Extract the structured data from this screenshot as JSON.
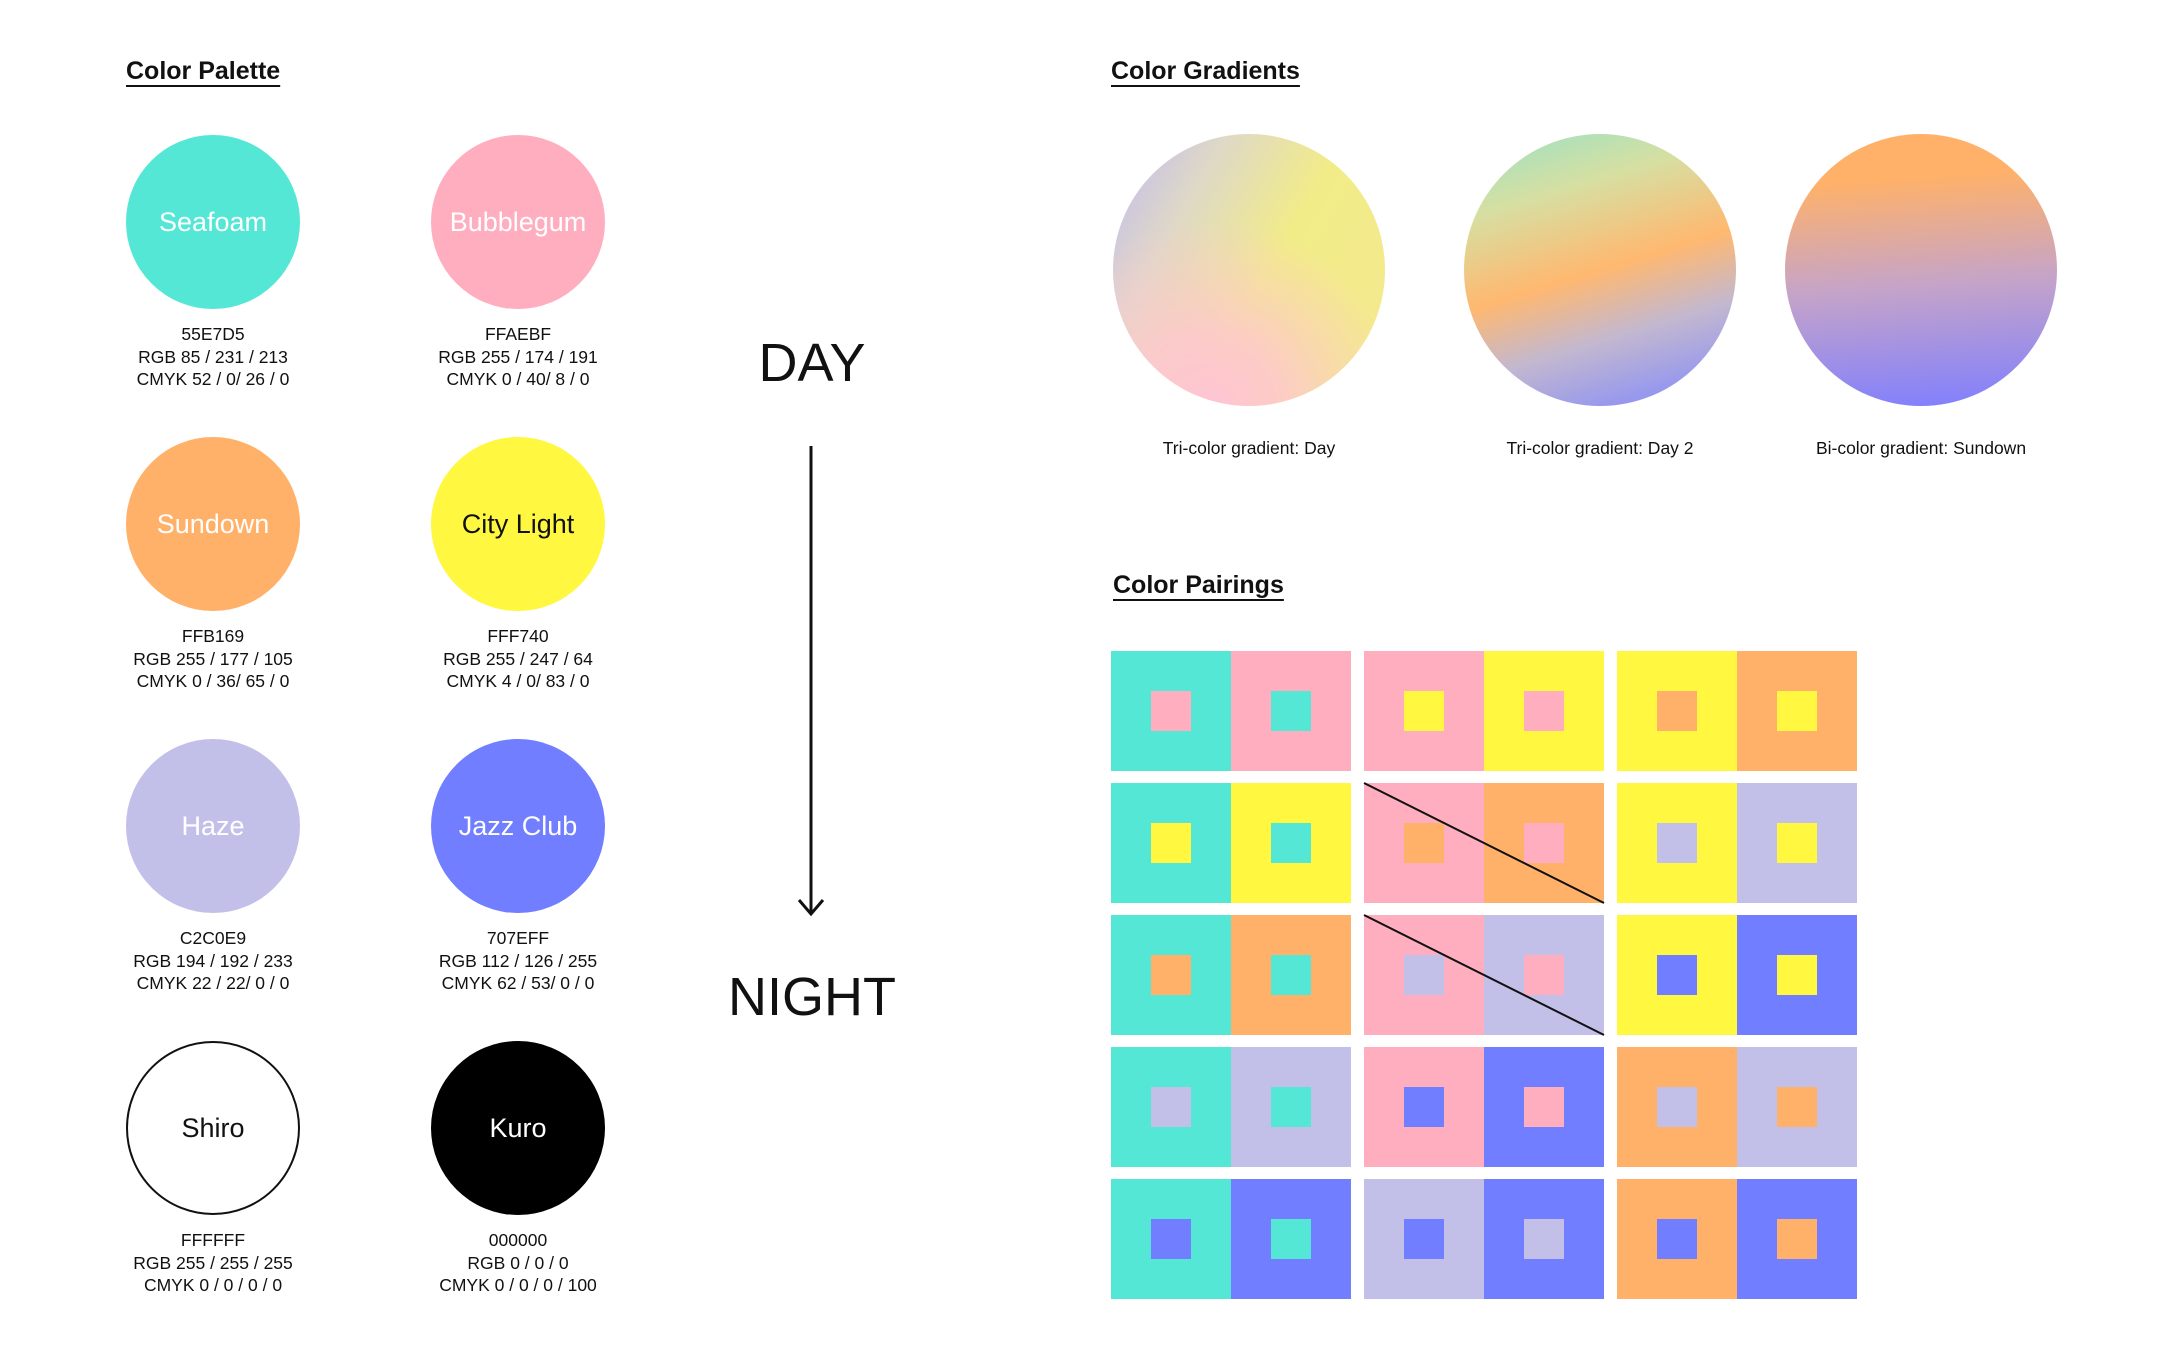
{
  "palette": {
    "title": "Color Palette",
    "swatches": [
      {
        "name": "Seafoam",
        "hex": "55E7D5",
        "rgb": "RGB 85 / 231 / 213",
        "cmyk": "CMYK 52 / 0/ 26 / 0",
        "color": "#55E7D5",
        "text_color": "#ffffff"
      },
      {
        "name": "Bubblegum",
        "hex": "FFAEBF",
        "rgb": "RGB 255 / 174 / 191",
        "cmyk": "CMYK 0 / 40/ 8 / 0",
        "color": "#FFAEBF",
        "text_color": "#ffffff"
      },
      {
        "name": "Sundown",
        "hex": "FFB169",
        "rgb": "RGB 255 / 177 / 105",
        "cmyk": "CMYK 0 / 36/ 65 / 0",
        "color": "#FFB169",
        "text_color": "#ffffff"
      },
      {
        "name": "City Light",
        "hex": "FFF740",
        "rgb": "RGB 255 / 247 / 64",
        "cmyk": "CMYK 4 / 0/ 83 / 0",
        "color": "#FFF740",
        "text_color": "#111111"
      },
      {
        "name": "Haze",
        "hex": "C2C0E9",
        "rgb": "RGB 194 / 192 / 233",
        "cmyk": "CMYK 22 / 22/ 0 / 0",
        "color": "#C2C0E9",
        "text_color": "#ffffff"
      },
      {
        "name": "Jazz Club",
        "hex": "707EFF",
        "rgb": "RGB 112 / 126 / 255",
        "cmyk": "CMYK 62 / 53/ 0 / 0",
        "color": "#707EFF",
        "text_color": "#ffffff"
      },
      {
        "name": "Shiro",
        "hex": "FFFFFF",
        "rgb": "RGB 255 / 255 / 255",
        "cmyk": "CMYK 0 / 0 / 0 / 0",
        "color": "#FFFFFF",
        "text_color": "#111111"
      },
      {
        "name": "Kuro",
        "hex": "000000",
        "rgb": "RGB 0 / 0 / 0",
        "cmyk": "CMYK 0 / 0 / 0 / 100",
        "color": "#000000",
        "text_color": "#ffffff"
      }
    ]
  },
  "scale": {
    "day_label": "DAY",
    "night_label": "NIGHT"
  },
  "gradients": {
    "title": "Color Gradients",
    "items": [
      {
        "label": "Tri-color gradient: Day"
      },
      {
        "label": "Tri-color gradient: Day 2"
      },
      {
        "label": "Bi-color gradient: Sundown"
      }
    ]
  },
  "pairings": {
    "title": "Color Pairings",
    "rows": [
      [
        [
          "#55E7D5",
          "#FFAEBF"
        ],
        [
          "#FFAEBF",
          "#FFF740"
        ],
        [
          "#FFF740",
          "#FFB169"
        ]
      ],
      [
        [
          "#55E7D5",
          "#FFF740"
        ],
        [
          "#FFAEBF",
          "#FFB169"
        ],
        [
          "#FFF740",
          "#C2C0E9"
        ]
      ],
      [
        [
          "#55E7D5",
          "#FFB169"
        ],
        [
          "#FFAEBF",
          "#C2C0E9"
        ],
        [
          "#FFF740",
          "#707EFF"
        ]
      ],
      [
        [
          "#55E7D5",
          "#C2C0E9"
        ],
        [
          "#FFAEBF",
          "#707EFF"
        ],
        [
          "#FFB169",
          "#C2C0E9"
        ]
      ],
      [
        [
          "#55E7D5",
          "#707EFF"
        ],
        [
          "#C2C0E9",
          "#707EFF"
        ],
        [
          "#FFB169",
          "#707EFF"
        ]
      ]
    ],
    "crossed_out": [
      [
        1,
        1
      ],
      [
        2,
        1
      ]
    ]
  }
}
